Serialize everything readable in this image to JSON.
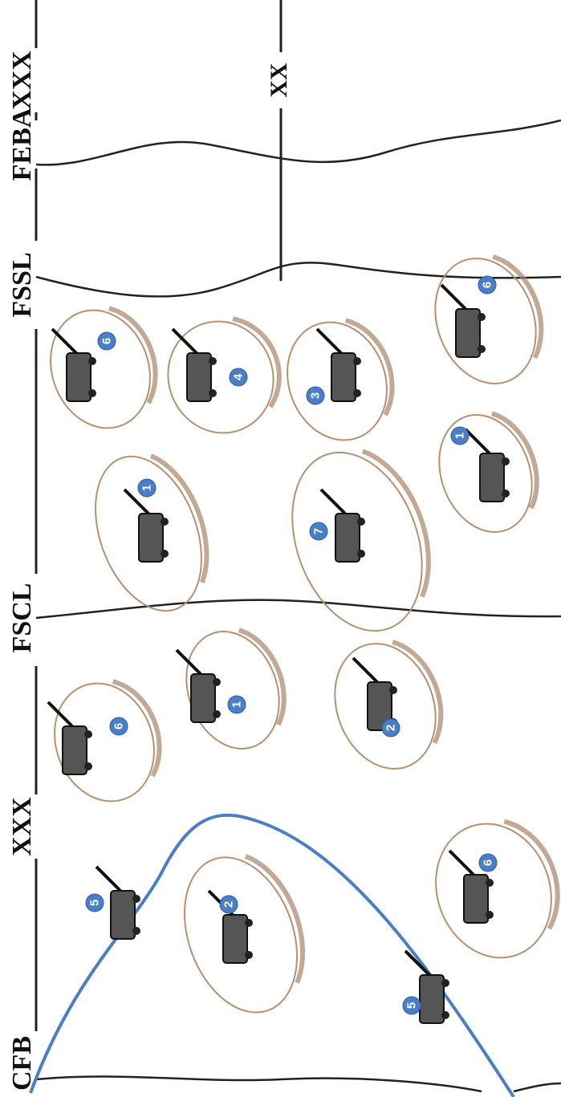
{
  "labels": [
    "CFB",
    "XXX",
    "FSCL",
    "FSSL",
    "FEBA",
    "XXX"
  ],
  "division_label": "XX",
  "badges": [
    5,
    2,
    6,
    5,
    6,
    1,
    2,
    7,
    1,
    1,
    4,
    3,
    6,
    6
  ]
}
